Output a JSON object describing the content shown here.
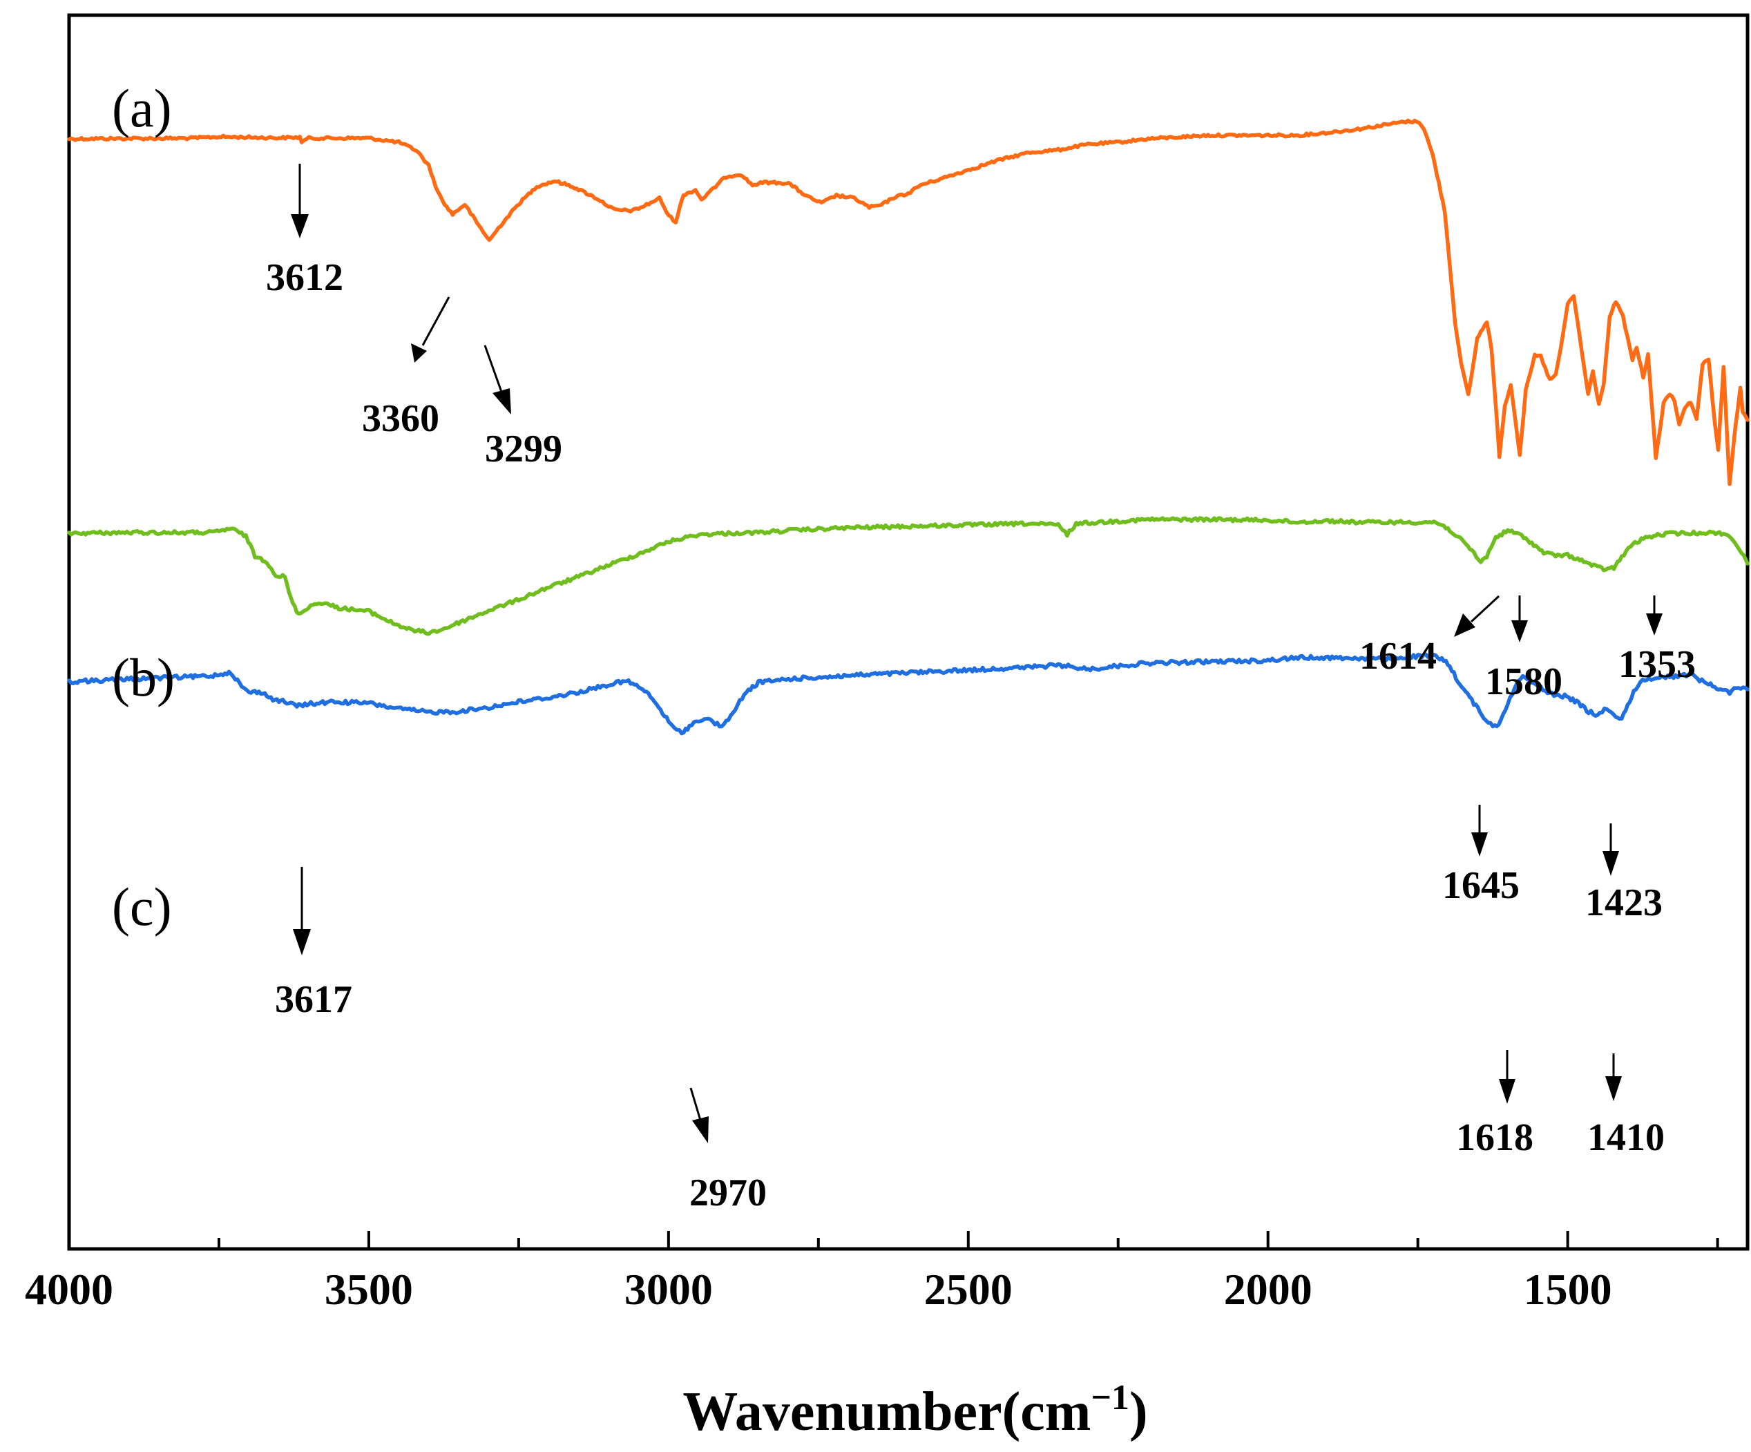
{
  "chart_data": {
    "type": "line",
    "xlabel_main": "Wavenumber(cm",
    "xlabel_sup": "−1",
    "xlabel_close": ")",
    "ylabel": "",
    "xlim": [
      4000,
      1200
    ],
    "x_reversed": true,
    "x_ticks": [
      4000,
      3500,
      3000,
      2500,
      2000,
      1500
    ],
    "x_tick_labels": [
      "4000",
      "3500",
      "3000",
      "2500",
      "2000",
      "1500"
    ],
    "y_ticks": false,
    "grid": false,
    "legend": "none",
    "series": [
      {
        "panel": "(a)",
        "color": "#ff6a13",
        "noise": 0.6,
        "points": [
          [
            4000,
            11
          ],
          [
            3900,
            10.5
          ],
          [
            3800,
            10.2
          ],
          [
            3750,
            8
          ],
          [
            3700,
            8.8
          ],
          [
            3650,
            9.6
          ],
          [
            3615,
            8.8
          ],
          [
            3612,
            15
          ],
          [
            3600,
            10
          ],
          [
            3500,
            10
          ],
          [
            3450,
            16
          ],
          [
            3420,
            28
          ],
          [
            3400,
            50
          ],
          [
            3385,
            88
          ],
          [
            3370,
            110
          ],
          [
            3360,
            120
          ],
          [
            3340,
            106
          ],
          [
            3320,
            132
          ],
          [
            3299,
            158
          ],
          [
            3280,
            136
          ],
          [
            3250,
            105
          ],
          [
            3220,
            80
          ],
          [
            3190,
            72
          ],
          [
            3160,
            80
          ],
          [
            3120,
            97
          ],
          [
            3090,
            114
          ],
          [
            3060,
            115
          ],
          [
            3040,
            108
          ],
          [
            3015,
            97
          ],
          [
            3000,
            122
          ],
          [
            2988,
            131
          ],
          [
            2975,
            92
          ],
          [
            2955,
            85
          ],
          [
            2945,
            99
          ],
          [
            2925,
            83
          ],
          [
            2905,
            66
          ],
          [
            2880,
            62
          ],
          [
            2860,
            78
          ],
          [
            2840,
            74
          ],
          [
            2800,
            75
          ],
          [
            2770,
            94
          ],
          [
            2745,
            104
          ],
          [
            2720,
            93
          ],
          [
            2690,
            97
          ],
          [
            2665,
            110
          ],
          [
            2645,
            107
          ],
          [
            2625,
            96
          ],
          [
            2600,
            90
          ],
          [
            2580,
            78
          ],
          [
            2550,
            70
          ],
          [
            2500,
            56
          ],
          [
            2450,
            42
          ],
          [
            2400,
            31
          ],
          [
            2350,
            27
          ],
          [
            2300,
            19
          ],
          [
            2250,
            16
          ],
          [
            2200,
            11
          ],
          [
            2100,
            6
          ],
          [
            2000,
            6
          ],
          [
            1950,
            6
          ],
          [
            1900,
            2
          ],
          [
            1850,
            -3
          ],
          [
            1800,
            -10
          ],
          [
            1770,
            -14
          ],
          [
            1748,
            -14
          ],
          [
            1740,
            -4
          ],
          [
            1725,
            35
          ],
          [
            1705,
            116
          ],
          [
            1688,
            275
          ],
          [
            1678,
            336
          ],
          [
            1666,
            382
          ],
          [
            1659,
            346
          ],
          [
            1651,
            300
          ],
          [
            1642,
            286
          ],
          [
            1635,
            275
          ],
          [
            1627,
            316
          ],
          [
            1614,
            470
          ],
          [
            1605,
            398
          ],
          [
            1595,
            366
          ],
          [
            1580,
            468
          ],
          [
            1570,
            376
          ],
          [
            1555,
            325
          ],
          [
            1545,
            326
          ],
          [
            1530,
            360
          ],
          [
            1520,
            353
          ],
          [
            1508,
            296
          ],
          [
            1500,
            250
          ],
          [
            1490,
            238
          ],
          [
            1480,
            298
          ],
          [
            1466,
            381
          ],
          [
            1458,
            348
          ],
          [
            1448,
            396
          ],
          [
            1440,
            365
          ],
          [
            1430,
            270
          ],
          [
            1420,
            246
          ],
          [
            1408,
            268
          ],
          [
            1400,
            300
          ],
          [
            1392,
            331
          ],
          [
            1385,
            313
          ],
          [
            1374,
            356
          ],
          [
            1366,
            324
          ],
          [
            1353,
            473
          ],
          [
            1340,
            394
          ],
          [
            1330,
            380
          ],
          [
            1322,
            390
          ],
          [
            1314,
            424
          ],
          [
            1305,
            400
          ],
          [
            1295,
            393
          ],
          [
            1285,
            418
          ],
          [
            1275,
            337
          ],
          [
            1265,
            332
          ],
          [
            1255,
            420
          ],
          [
            1249,
            460
          ],
          [
            1240,
            342
          ],
          [
            1230,
            512
          ],
          [
            1220,
            425
          ],
          [
            1212,
            372
          ],
          [
            1208,
            408
          ],
          [
            1200,
            418
          ]
        ]
      },
      {
        "panel": "(b)",
        "color": "#6fbe1e",
        "noise": 0.8,
        "points": [
          [
            4000,
            582
          ],
          [
            3900,
            581
          ],
          [
            3800,
            581
          ],
          [
            3760,
            581
          ],
          [
            3730,
            575
          ],
          [
            3705,
            586
          ],
          [
            3690,
            615
          ],
          [
            3670,
            623
          ],
          [
            3655,
            643
          ],
          [
            3640,
            645
          ],
          [
            3630,
            677
          ],
          [
            3617,
            700
          ],
          [
            3600,
            688
          ],
          [
            3580,
            682
          ],
          [
            3550,
            690
          ],
          [
            3500,
            695
          ],
          [
            3460,
            712
          ],
          [
            3430,
            722
          ],
          [
            3400,
            726
          ],
          [
            3380,
            722
          ],
          [
            3340,
            708
          ],
          [
            3300,
            694
          ],
          [
            3250,
            678
          ],
          [
            3200,
            660
          ],
          [
            3150,
            645
          ],
          [
            3100,
            628
          ],
          [
            3050,
            612
          ],
          [
            3000,
            594
          ],
          [
            2950,
            584
          ],
          [
            2900,
            582
          ],
          [
            2850,
            581
          ],
          [
            2800,
            578
          ],
          [
            2750,
            576
          ],
          [
            2700,
            574
          ],
          [
            2600,
            572
          ],
          [
            2500,
            570
          ],
          [
            2400,
            568
          ],
          [
            2350,
            570
          ],
          [
            2335,
            584
          ],
          [
            2320,
            568
          ],
          [
            2280,
            566
          ],
          [
            2200,
            562
          ],
          [
            2100,
            562
          ],
          [
            2000,
            563
          ],
          [
            1950,
            566
          ],
          [
            1900,
            564
          ],
          [
            1850,
            566
          ],
          [
            1800,
            566
          ],
          [
            1750,
            566
          ],
          [
            1720,
            566
          ],
          [
            1700,
            575
          ],
          [
            1680,
            590
          ],
          [
            1660,
            607
          ],
          [
            1645,
            624
          ],
          [
            1635,
            615
          ],
          [
            1620,
            588
          ],
          [
            1600,
            578
          ],
          [
            1580,
            584
          ],
          [
            1560,
            596
          ],
          [
            1540,
            610
          ],
          [
            1520,
            614
          ],
          [
            1500,
            614
          ],
          [
            1480,
            620
          ],
          [
            1460,
            628
          ],
          [
            1440,
            634
          ],
          [
            1423,
            632
          ],
          [
            1410,
            617
          ],
          [
            1395,
            600
          ],
          [
            1370,
            588
          ],
          [
            1330,
            582
          ],
          [
            1300,
            582
          ],
          [
            1270,
            581
          ],
          [
            1240,
            582
          ],
          [
            1225,
            590
          ],
          [
            1210,
            610
          ],
          [
            1200,
            626
          ]
        ]
      },
      {
        "panel": "(c)",
        "color": "#1f6fe0",
        "noise": 0.9,
        "points": [
          [
            4000,
            797
          ],
          [
            3900,
            793
          ],
          [
            3800,
            790
          ],
          [
            3760,
            788
          ],
          [
            3730,
            783
          ],
          [
            3712,
            804
          ],
          [
            3700,
            812
          ],
          [
            3680,
            812
          ],
          [
            3660,
            822
          ],
          [
            3640,
            826
          ],
          [
            3620,
            832
          ],
          [
            3600,
            829
          ],
          [
            3560,
            826
          ],
          [
            3500,
            828
          ],
          [
            3450,
            836
          ],
          [
            3400,
            841
          ],
          [
            3350,
            840
          ],
          [
            3300,
            834
          ],
          [
            3250,
            826
          ],
          [
            3200,
            820
          ],
          [
            3150,
            812
          ],
          [
            3100,
            801
          ],
          [
            3070,
            796
          ],
          [
            3050,
            804
          ],
          [
            3030,
            818
          ],
          [
            3010,
            842
          ],
          [
            2990,
            866
          ],
          [
            2978,
            870
          ],
          [
            2965,
            862
          ],
          [
            2950,
            852
          ],
          [
            2930,
            852
          ],
          [
            2915,
            861
          ],
          [
            2900,
            854
          ],
          [
            2885,
            830
          ],
          [
            2870,
            812
          ],
          [
            2850,
            798
          ],
          [
            2800,
            793
          ],
          [
            2700,
            788
          ],
          [
            2600,
            784
          ],
          [
            2500,
            780
          ],
          [
            2400,
            776
          ],
          [
            2350,
            773
          ],
          [
            2320,
            776
          ],
          [
            2300,
            779
          ],
          [
            2250,
            774
          ],
          [
            2200,
            770
          ],
          [
            2100,
            768
          ],
          [
            2000,
            766
          ],
          [
            1950,
            762
          ],
          [
            1900,
            762
          ],
          [
            1800,
            764
          ],
          [
            1750,
            760
          ],
          [
            1720,
            760
          ],
          [
            1700,
            770
          ],
          [
            1680,
            800
          ],
          [
            1660,
            824
          ],
          [
            1640,
            848
          ],
          [
            1625,
            862
          ],
          [
            1615,
            858
          ],
          [
            1600,
            828
          ],
          [
            1585,
            798
          ],
          [
            1575,
            790
          ],
          [
            1560,
            796
          ],
          [
            1545,
            806
          ],
          [
            1530,
            814
          ],
          [
            1505,
            818
          ],
          [
            1485,
            826
          ],
          [
            1465,
            840
          ],
          [
            1450,
            846
          ],
          [
            1435,
            834
          ],
          [
            1420,
            850
          ],
          [
            1410,
            848
          ],
          [
            1400,
            832
          ],
          [
            1390,
            810
          ],
          [
            1375,
            796
          ],
          [
            1350,
            790
          ],
          [
            1320,
            789
          ],
          [
            1295,
            786
          ],
          [
            1280,
            794
          ],
          [
            1265,
            800
          ],
          [
            1245,
            808
          ],
          [
            1230,
            812
          ],
          [
            1215,
            804
          ],
          [
            1200,
            808
          ]
        ]
      }
    ],
    "annotations": [
      {
        "label": "3612",
        "panel": 0
      },
      {
        "label": "3360",
        "panel": 0
      },
      {
        "label": "3299",
        "panel": 0
      },
      {
        "label": "1614",
        "panel": 0
      },
      {
        "label": "1580",
        "panel": 0
      },
      {
        "label": "1353",
        "panel": 0
      },
      {
        "label": "3617",
        "panel": 1
      },
      {
        "label": "1645",
        "panel": 1
      },
      {
        "label": "1423",
        "panel": 1
      },
      {
        "label": "2970",
        "panel": 2
      },
      {
        "label": "1618",
        "panel": 2
      },
      {
        "label": "1410",
        "panel": 2
      }
    ]
  }
}
